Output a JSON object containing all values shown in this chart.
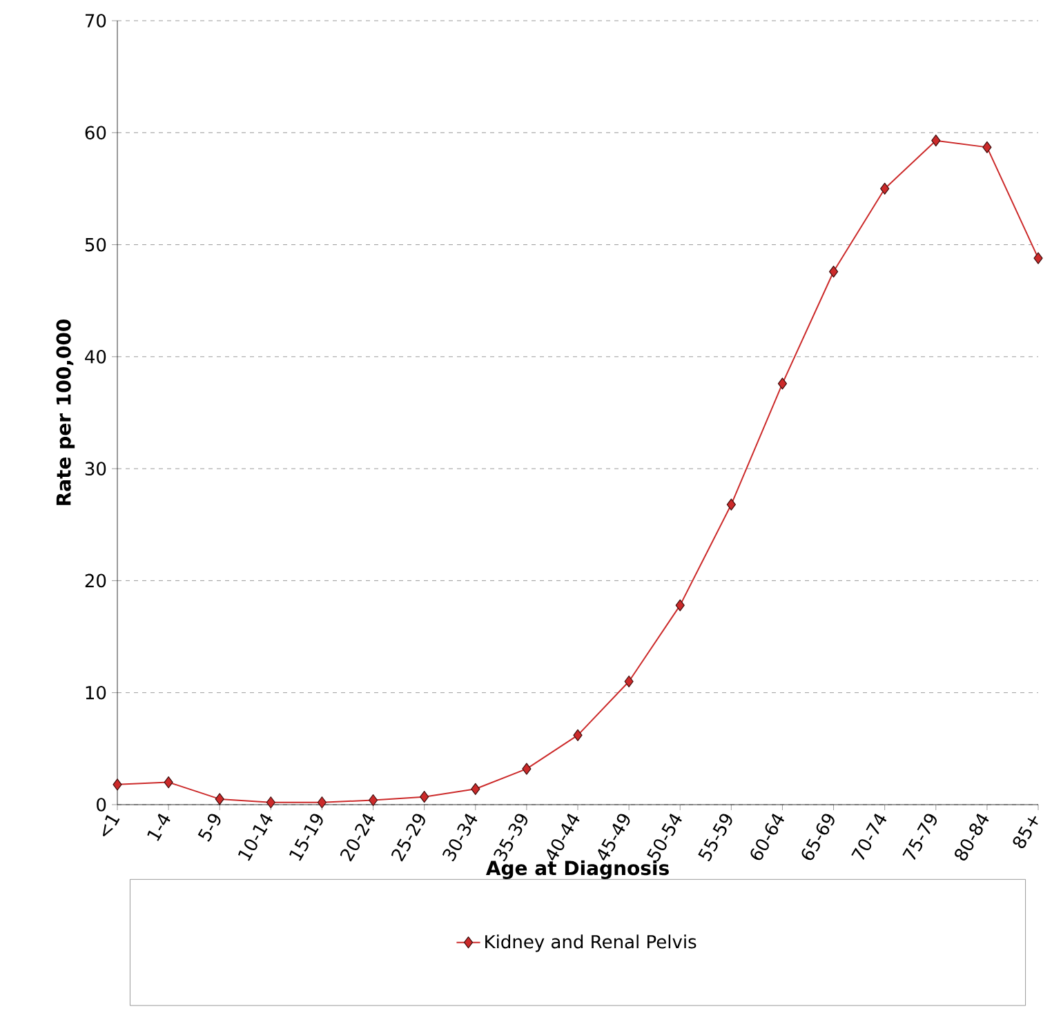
{
  "chart_data": {
    "type": "line",
    "xlabel": "Age at Diagnosis",
    "ylabel": "Rate per 100,000",
    "categories": [
      "<1",
      "1-4",
      "5-9",
      "10-14",
      "15-19",
      "20-24",
      "25-29",
      "30-34",
      "35-39",
      "40-44",
      "45-49",
      "50-54",
      "55-59",
      "60-64",
      "65-69",
      "70-74",
      "75-79",
      "80-84",
      "85+"
    ],
    "series": [
      {
        "name": "Kidney and Renal Pelvis",
        "color": "#cc2a2a",
        "values": [
          1.8,
          2.0,
          0.5,
          0.2,
          0.2,
          0.4,
          0.7,
          1.4,
          3.2,
          6.2,
          11.0,
          17.8,
          26.8,
          37.6,
          47.6,
          55.0,
          59.3,
          58.7,
          48.8
        ]
      }
    ],
    "ylim": [
      0,
      70
    ],
    "yticks": [
      0,
      10,
      20,
      30,
      40,
      50,
      60,
      70
    ],
    "grid": "y",
    "legend": "bottom",
    "marker": "diamond",
    "line_style": "solid"
  }
}
